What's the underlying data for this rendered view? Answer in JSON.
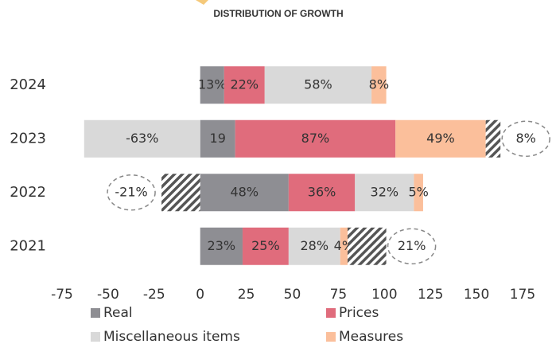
{
  "chart_data": {
    "type": "stacked-barh",
    "title": "DISTRIBUTION OF GROWTH",
    "categories": [
      "2024",
      "2023",
      "2022",
      "2021"
    ],
    "series": [
      {
        "name": "Real",
        "color": "#8e8e93",
        "values": [
          13,
          19,
          48,
          23
        ],
        "value_labels": [
          "13%",
          "19",
          "48%",
          "23%"
        ]
      },
      {
        "name": "Prices",
        "color": "#e06c7c",
        "values": [
          22,
          87,
          36,
          25
        ],
        "value_labels": [
          "22%",
          "87%",
          "36%",
          "25%"
        ]
      },
      {
        "name": "Miscellaneous items",
        "color": "#d9d9d9",
        "values": [
          58,
          -63,
          32,
          28
        ],
        "value_labels": [
          "58%",
          "-63%",
          "32%",
          "28%"
        ]
      },
      {
        "name": "Measures",
        "color": "#fbbf9b",
        "values": [
          8,
          49,
          5,
          4
        ],
        "value_labels": [
          "8%",
          "49%",
          "5%",
          "4%"
        ]
      }
    ],
    "residuals": {
      "values": [
        null,
        8,
        -21,
        21
      ],
      "value_labels": [
        null,
        "8%",
        "-21%",
        "21%"
      ]
    },
    "xlim": [
      -75,
      175
    ],
    "xticks": [
      -75,
      -50,
      -25,
      0,
      25,
      50,
      75,
      100,
      125,
      150,
      175
    ],
    "legend": "bottom"
  }
}
